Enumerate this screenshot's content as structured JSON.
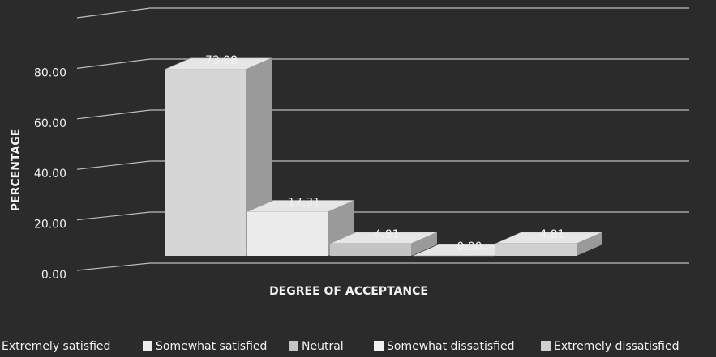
{
  "chart_data": {
    "type": "bar3d",
    "xlabel": "DEGREE OF ACCEPTANCE",
    "ylabel": "PERCENTAGE",
    "ylim": [
      0,
      100
    ],
    "yticks": [
      {
        "value": 0,
        "label": "0.00"
      },
      {
        "value": 20,
        "label": "20.00"
      },
      {
        "value": 40,
        "label": "40.00"
      },
      {
        "value": 60,
        "label": "60.00"
      },
      {
        "value": 80,
        "label": "80.00"
      }
    ],
    "grid": true,
    "legend": "bottom",
    "series": [
      {
        "name": "Extremely satisfied",
        "color": "#d6d6d6",
        "values": [
          73.08
        ],
        "value_labels": [
          "73.08"
        ]
      },
      {
        "name": "Somewhat satisfied",
        "color": "#ececec",
        "values": [
          17.31
        ],
        "value_labels": [
          "17.31"
        ]
      },
      {
        "name": "Neutral",
        "color": "#c4c4c4",
        "values": [
          4.81
        ],
        "value_labels": [
          "4.81"
        ]
      },
      {
        "name": "Somewhat dissatisfied",
        "color": "#f2f2f2",
        "values": [
          0.0
        ],
        "value_labels": [
          "0.00"
        ]
      },
      {
        "name": "Extremely dissatisfied",
        "color": "#d0d0d0",
        "values": [
          4.81
        ],
        "value_labels": [
          "4.81"
        ]
      }
    ]
  }
}
